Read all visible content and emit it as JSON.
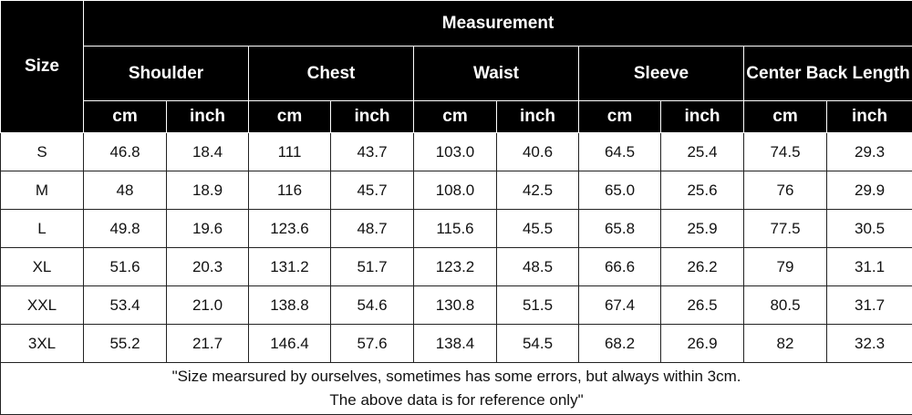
{
  "table": {
    "size_header": "Size",
    "measurement_header": "Measurement",
    "groups": [
      "Shoulder",
      "Chest",
      "Waist",
      "Sleeve",
      "Center Back Length"
    ],
    "units": [
      "cm",
      "inch"
    ],
    "rows": [
      {
        "size": "S",
        "values": [
          "46.8",
          "18.4",
          "111",
          "43.7",
          "103.0",
          "40.6",
          "64.5",
          "25.4",
          "74.5",
          "29.3"
        ]
      },
      {
        "size": "M",
        "values": [
          "48",
          "18.9",
          "116",
          "45.7",
          "108.0",
          "42.5",
          "65.0",
          "25.6",
          "76",
          "29.9"
        ]
      },
      {
        "size": "L",
        "values": [
          "49.8",
          "19.6",
          "123.6",
          "48.7",
          "115.6",
          "45.5",
          "65.8",
          "25.9",
          "77.5",
          "30.5"
        ]
      },
      {
        "size": "XL",
        "values": [
          "51.6",
          "20.3",
          "131.2",
          "51.7",
          "123.2",
          "48.5",
          "66.6",
          "26.2",
          "79",
          "31.1"
        ]
      },
      {
        "size": "XXL",
        "values": [
          "53.4",
          "21.0",
          "138.8",
          "54.6",
          "130.8",
          "51.5",
          "67.4",
          "26.5",
          "80.5",
          "31.7"
        ]
      },
      {
        "size": "3XL",
        "values": [
          "55.2",
          "21.7",
          "146.4",
          "57.6",
          "138.4",
          "54.5",
          "68.2",
          "26.9",
          "82",
          "32.3"
        ]
      }
    ],
    "note_line1": "\"Size mearsured by ourselves, sometimes has some errors, but always within 3cm.",
    "note_line2": "The above data is for reference only\""
  },
  "colors": {
    "header_bg": "#000000",
    "header_text": "#ffffff",
    "grid": "#222222"
  }
}
